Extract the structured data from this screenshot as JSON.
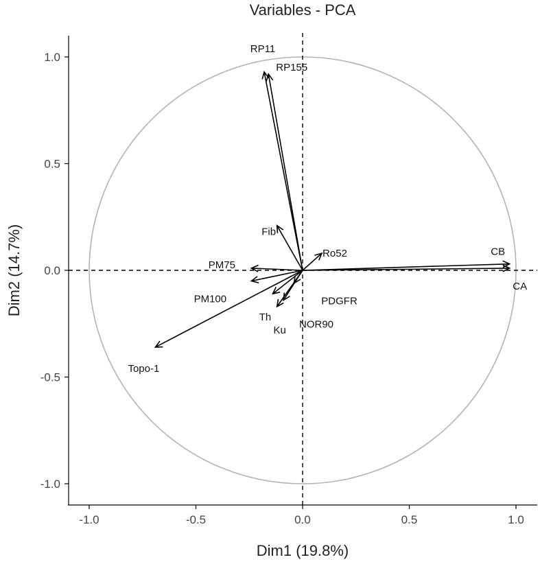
{
  "chart_data": {
    "type": "scatter",
    "title": "Variables - PCA",
    "xlabel": "Dim1 (19.8%)",
    "ylabel": "Dim2 (14.7%)",
    "xlim": [
      -1.1,
      1.1
    ],
    "ylim": [
      -1.1,
      1.1
    ],
    "x_ticks": [
      -1.0,
      -0.5,
      0.0,
      0.5,
      1.0
    ],
    "y_ticks": [
      -1.0,
      -0.5,
      0.0,
      0.5,
      1.0
    ],
    "x_tick_labels": [
      "-1.0",
      "-0.5",
      "0.0",
      "0.5",
      "1.0"
    ],
    "y_tick_labels": [
      "-1.0",
      "-0.5",
      "0.0",
      "0.5",
      "1.0"
    ],
    "grid": false,
    "unit_circle": true,
    "colors": {
      "arrows": "#000000",
      "circle": "#b3b3b3",
      "axes": "#000000"
    },
    "variables": [
      {
        "name": "RP11",
        "x": -0.18,
        "y": 0.93
      },
      {
        "name": "RP155",
        "x": -0.16,
        "y": 0.92
      },
      {
        "name": "Fib",
        "x": -0.12,
        "y": 0.21
      },
      {
        "name": "Ro52",
        "x": 0.09,
        "y": 0.08
      },
      {
        "name": "PM75",
        "x": -0.24,
        "y": 0.01
      },
      {
        "name": "PM100",
        "x": -0.24,
        "y": -0.05
      },
      {
        "name": "PDGFR",
        "x": -0.04,
        "y": -0.06
      },
      {
        "name": "Th",
        "x": -0.14,
        "y": -0.11
      },
      {
        "name": "NOR90",
        "x": -0.09,
        "y": -0.14
      },
      {
        "name": "Ku",
        "x": -0.12,
        "y": -0.17
      },
      {
        "name": "Topo-1",
        "x": -0.69,
        "y": -0.36
      },
      {
        "name": "CB",
        "x": 0.97,
        "y": 0.03
      },
      {
        "name": "CA",
        "x": 0.97,
        "y": 0.01
      }
    ]
  }
}
